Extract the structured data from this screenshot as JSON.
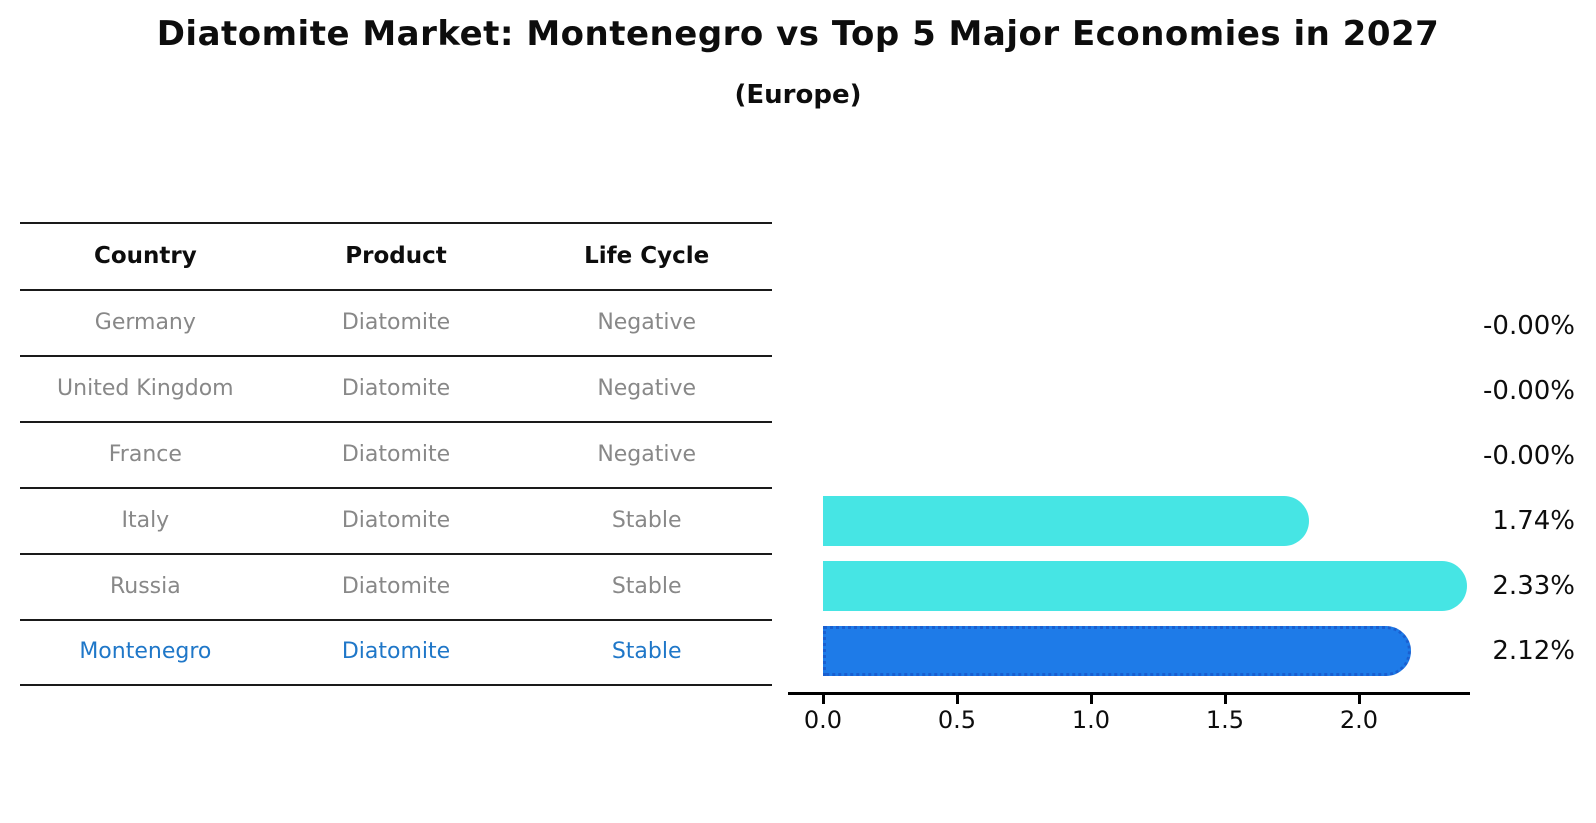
{
  "title": "Diatomite Market: Montenegro vs Top 5 Major Economies in 2027",
  "subtitle": "(Europe)",
  "table": {
    "headers": [
      "Country",
      "Product",
      "Life Cycle"
    ],
    "rows": [
      {
        "country": "Germany",
        "product": "Diatomite",
        "life_cycle": "Negative"
      },
      {
        "country": "United Kingdom",
        "product": "Diatomite",
        "life_cycle": "Negative"
      },
      {
        "country": "France",
        "product": "Diatomite",
        "life_cycle": "Negative"
      },
      {
        "country": "Italy",
        "product": "Diatomite",
        "life_cycle": "Stable"
      },
      {
        "country": "Russia",
        "product": "Diatomite",
        "life_cycle": "Stable"
      },
      {
        "country": "Montenegro",
        "product": "Diatomite",
        "life_cycle": "Stable"
      }
    ]
  },
  "chart_data": {
    "type": "bar",
    "orientation": "horizontal",
    "title": "Diatomite Market: Montenegro vs Top 5 Major Economies in 2027",
    "subtitle": "(Europe)",
    "categories": [
      "Germany",
      "United Kingdom",
      "France",
      "Italy",
      "Russia",
      "Montenegro"
    ],
    "values": [
      -0.0,
      -0.0,
      -0.0,
      1.74,
      2.33,
      2.12
    ],
    "value_labels": [
      "-0.00%",
      "-0.00%",
      "-0.00%",
      "1.74%",
      "2.33%",
      "2.12%"
    ],
    "units": "percent",
    "xtick_labels": [
      "0.0",
      "0.5",
      "1.0",
      "1.5",
      "2.0"
    ],
    "xticks": [
      0.0,
      0.5,
      1.0,
      1.5,
      2.0
    ],
    "xlim": [
      0,
      2.41
    ],
    "grid": false,
    "legend": false,
    "bar_colors": [
      "#46E5E4",
      "#46E5E4",
      "#46E5E4",
      "#46E5E4",
      "#46E5E4",
      "#1E7BE8"
    ],
    "highlight_index": 5
  },
  "colors": {
    "bar_cyan": "#46E5E4",
    "bar_blue": "#1E7BE8",
    "bar_blue_edge": "#1a5fd0",
    "table_text_gray": "#888888",
    "highlight_text_blue": "#1F77C8",
    "axis_black": "#000000"
  }
}
